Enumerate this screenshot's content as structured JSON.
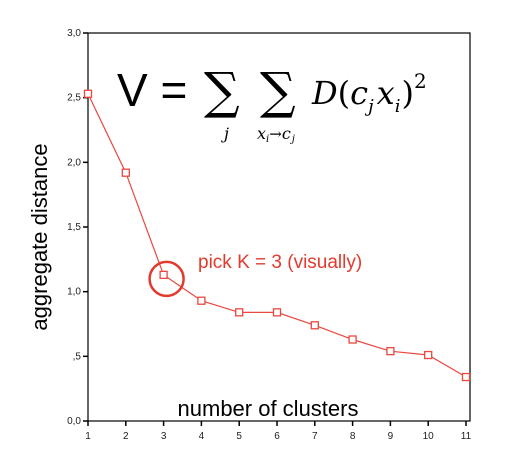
{
  "chart_data": {
    "type": "line",
    "x": [
      1,
      2,
      3,
      4,
      5,
      6,
      7,
      8,
      9,
      10,
      11
    ],
    "series": [
      {
        "values": [
          2.53,
          1.92,
          1.13,
          0.93,
          0.84,
          0.84,
          0.74,
          0.63,
          0.54,
          0.51,
          0.34
        ]
      }
    ],
    "xticks": [
      "1",
      "2",
      "3",
      "4",
      "5",
      "6",
      "7",
      "8",
      "9",
      "10",
      "11"
    ],
    "yticks": [
      {
        "value": 0.0,
        "label": "0,0"
      },
      {
        "value": 0.5,
        "label": ",5"
      },
      {
        "value": 1.0,
        "label": "1,0"
      },
      {
        "value": 1.5,
        "label": "1,5"
      },
      {
        "value": 2.0,
        "label": "2,0"
      },
      {
        "value": 2.5,
        "label": "2,5"
      },
      {
        "value": 3.0,
        "label": "3,0"
      }
    ],
    "xlim": [
      1,
      11
    ],
    "ylim": [
      0,
      3.0
    ],
    "xlabel": "number of clusters",
    "ylabel": "aggregate distance",
    "grid": false,
    "series_color": "#e8483f",
    "annotation": {
      "text": "pick K = 3 (visually)",
      "x": 3,
      "y": 1.13,
      "color": "#e23a2e"
    },
    "formula": {
      "lhs": "V =",
      "sum_symbol": "∑",
      "sub1": "j",
      "sub2_base": "x",
      "sub2_index": "i",
      "sub2_arrow": "→",
      "sub2_target": "c",
      "sub2_target_index": "j",
      "body_D": "D",
      "body_open": "(",
      "body_c": "c",
      "body_j": "j",
      "body_x": "x",
      "body_i": "i",
      "body_close": ")",
      "body_exp": "2"
    }
  }
}
